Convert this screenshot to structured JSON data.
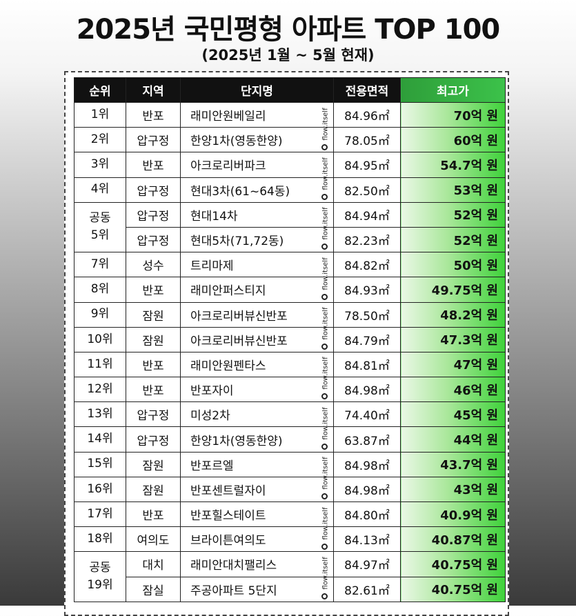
{
  "title": "2025년 국민평형 아파트 TOP 100",
  "subtitle": "(2025년 1월 ~ 5월 현재)",
  "watermark": "flow.itself",
  "table": {
    "columns": [
      "순위",
      "지역",
      "단지명",
      "전용면적",
      "최고가"
    ],
    "rows": [
      {
        "rank": "1위",
        "region": "반포",
        "name": "래미안원베일리",
        "area": "84.96㎡",
        "price": "70억 원"
      },
      {
        "rank": "2위",
        "region": "압구정",
        "name": "한양1차(영동한양)",
        "area": "78.05㎡",
        "price": "60억 원"
      },
      {
        "rank": "3위",
        "region": "반포",
        "name": "아크로리버파크",
        "area": "84.95㎡",
        "price": "54.7억 원"
      },
      {
        "rank": "4위",
        "region": "압구정",
        "name": "현대3차(61~64동)",
        "area": "82.50㎡",
        "price": "53억 원"
      },
      {
        "rank": "공동\n5위",
        "region": "압구정",
        "name": "현대14차",
        "area": "84.94㎡",
        "price": "52억 원"
      },
      {
        "region": "압구정",
        "name": "현대5차(71,72동)",
        "area": "82.23㎡",
        "price": "52억 원"
      },
      {
        "rank": "7위",
        "region": "성수",
        "name": "트리마제",
        "area": "84.82㎡",
        "price": "50억 원"
      },
      {
        "rank": "8위",
        "region": "반포",
        "name": "래미안퍼스티지",
        "area": "84.93㎡",
        "price": "49.75억 원"
      },
      {
        "rank": "9위",
        "region": "잠원",
        "name": "아크로리버뷰신반포",
        "area": "78.50㎡",
        "price": "48.2억 원"
      },
      {
        "rank": "10위",
        "region": "잠원",
        "name": "아크로리버뷰신반포",
        "area": "84.79㎡",
        "price": "47.3억 원"
      },
      {
        "rank": "11위",
        "region": "반포",
        "name": "래미안원펜타스",
        "area": "84.81㎡",
        "price": "47억 원"
      },
      {
        "rank": "12위",
        "region": "반포",
        "name": "반포자이",
        "area": "84.98㎡",
        "price": "46억 원"
      },
      {
        "rank": "13위",
        "region": "압구정",
        "name": "미성2차",
        "area": "74.40㎡",
        "price": "45억 원"
      },
      {
        "rank": "14위",
        "region": "압구정",
        "name": "한양1차(영동한양)",
        "area": "63.87㎡",
        "price": "44억 원"
      },
      {
        "rank": "15위",
        "region": "잠원",
        "name": "반포르엘",
        "area": "84.98㎡",
        "price": "43.7억 원"
      },
      {
        "rank": "16위",
        "region": "잠원",
        "name": "반포센트럴자이",
        "area": "84.98㎡",
        "price": "43억 원"
      },
      {
        "rank": "17위",
        "region": "반포",
        "name": "반포힐스테이트",
        "area": "84.80㎡",
        "price": "40.9억 원"
      },
      {
        "rank": "18위",
        "region": "여의도",
        "name": "브라이튼여의도",
        "area": "84.13㎡",
        "price": "40.87억 원"
      },
      {
        "rank": "공동\n19위",
        "region": "대치",
        "name": "래미안대치팰리스",
        "area": "84.97㎡",
        "price": "40.75억 원"
      },
      {
        "region": "잠실",
        "name": "주공아파트 5단지",
        "area": "82.61㎡",
        "price": "40.75억 원"
      }
    ]
  }
}
